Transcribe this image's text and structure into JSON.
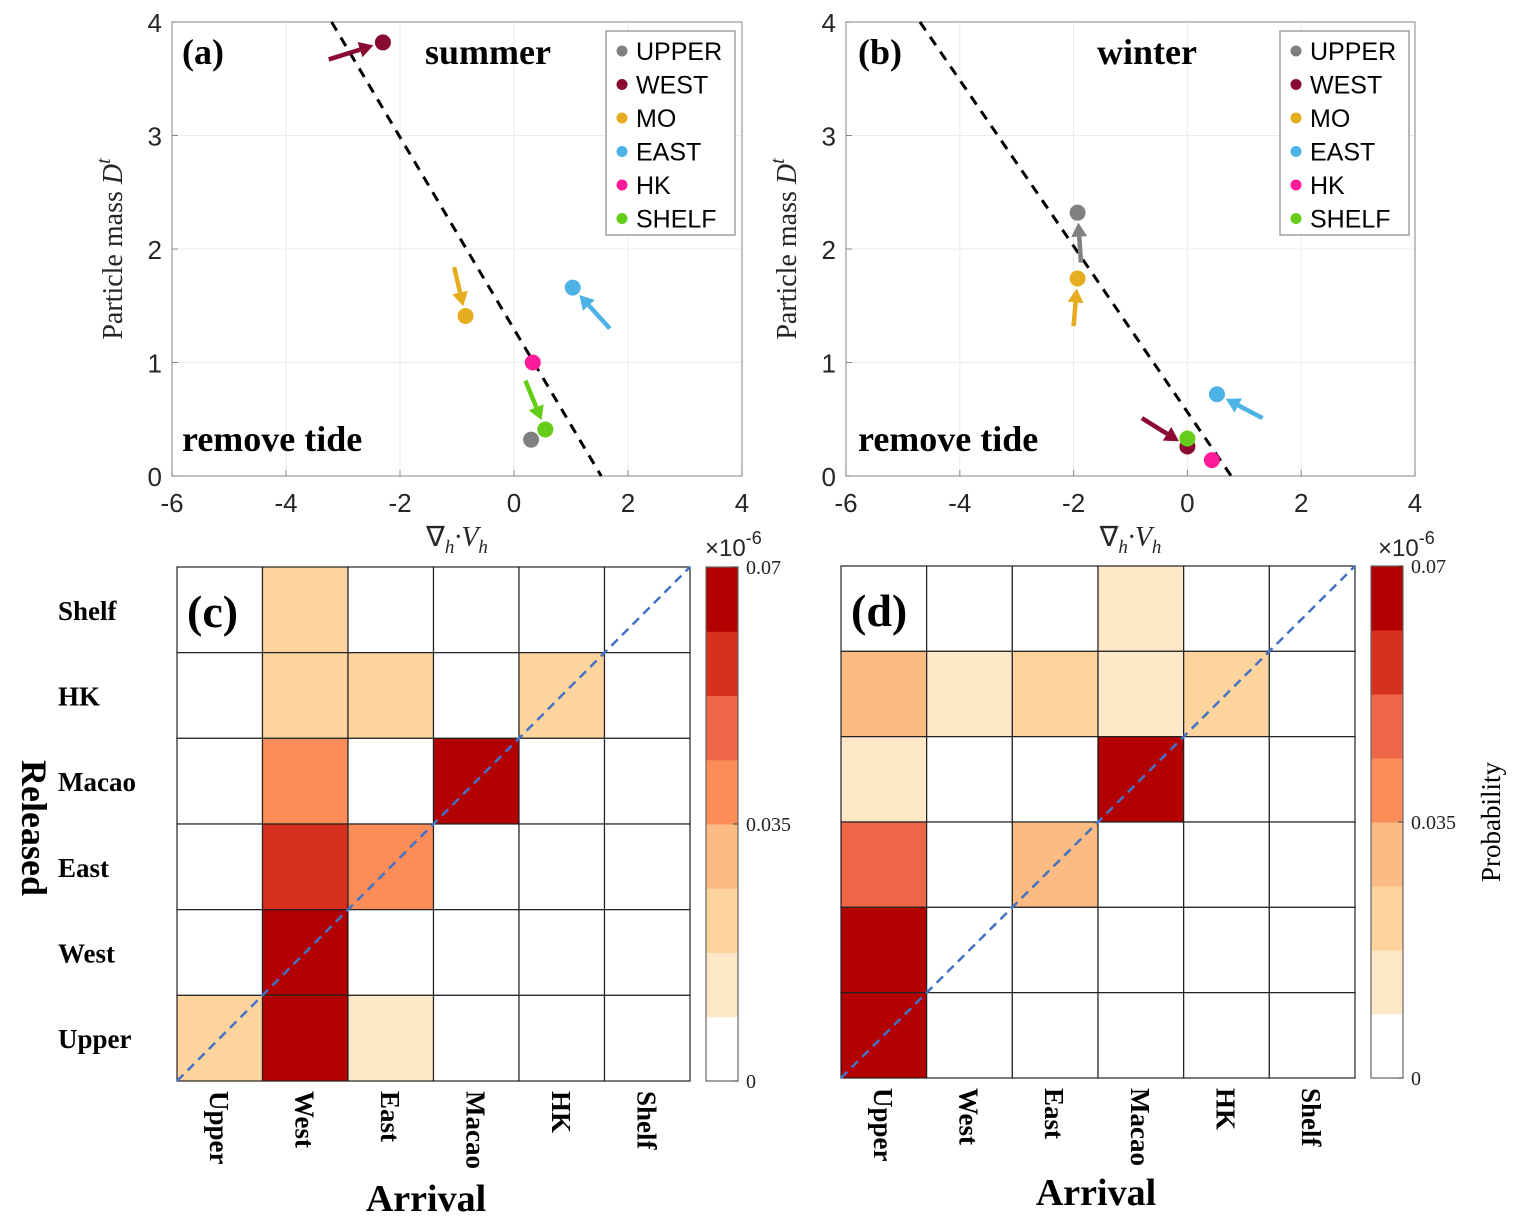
{
  "chart_data": [
    {
      "panel": "a",
      "type": "scatter",
      "panel_label": "(a)",
      "season_label": "summer",
      "condition_label": "remove tide",
      "xlabel": "∇h·Vh",
      "ylabel": "Particle mass D^t",
      "x_multiplier": "×10^-6",
      "xlim": [
        -6,
        4
      ],
      "ylim": [
        0,
        4
      ],
      "xticks": [
        -6,
        -4,
        -2,
        0,
        2,
        4
      ],
      "yticks": [
        0,
        1,
        2,
        3,
        4
      ],
      "grid": true,
      "legend_position": "top-right",
      "series": [
        {
          "name": "UPPER",
          "color": "#808080",
          "x": 0.3,
          "y": 0.32,
          "arrow": null
        },
        {
          "name": "WEST",
          "color": "#8b0a32",
          "x": -2.3,
          "y": 3.82,
          "arrow": {
            "from": [
              -3.25,
              3.67
            ]
          }
        },
        {
          "name": "MO",
          "color": "#e6ad21",
          "x": -0.85,
          "y": 1.41,
          "arrow": {
            "from": [
              -1.05,
              1.84
            ]
          }
        },
        {
          "name": "EAST",
          "color": "#4db3e6",
          "x": 1.03,
          "y": 1.66,
          "arrow": {
            "from": [
              1.68,
              1.3
            ]
          }
        },
        {
          "name": "HK",
          "color": "#ff1a99",
          "x": 0.33,
          "y": 1.0,
          "arrow": null
        },
        {
          "name": "SHELF",
          "color": "#66cc1a",
          "x": 0.55,
          "y": 0.41,
          "arrow": {
            "from": [
              0.2,
              0.84
            ]
          }
        }
      ],
      "fit_line": {
        "style": "dashed",
        "color": "#000000",
        "points": [
          [
            -3.2,
            4.0
          ],
          [
            1.53,
            0.0
          ]
        ]
      }
    },
    {
      "panel": "b",
      "type": "scatter",
      "panel_label": "(b)",
      "season_label": "winter",
      "condition_label": "remove tide",
      "xlabel": "∇h·Vh",
      "ylabel": "Particle mass D^t",
      "x_multiplier": "×10^-6",
      "xlim": [
        -6,
        4
      ],
      "ylim": [
        0,
        4
      ],
      "xticks": [
        -6,
        -4,
        -2,
        0,
        2,
        4
      ],
      "yticks": [
        0,
        1,
        2,
        3,
        4
      ],
      "grid": true,
      "legend_position": "top-right",
      "series": [
        {
          "name": "UPPER",
          "color": "#808080",
          "x": -1.93,
          "y": 2.32,
          "arrow": {
            "from": [
              -1.87,
              1.88
            ]
          }
        },
        {
          "name": "WEST",
          "color": "#8b0a32",
          "x": 0.0,
          "y": 0.26,
          "arrow": {
            "from": [
              -0.8,
              0.51
            ]
          }
        },
        {
          "name": "MO",
          "color": "#e6ad21",
          "x": -1.93,
          "y": 1.74,
          "arrow": {
            "from": [
              -2.0,
              1.32
            ]
          }
        },
        {
          "name": "EAST",
          "color": "#4db3e6",
          "x": 0.52,
          "y": 0.72,
          "arrow": {
            "from": [
              1.32,
              0.51
            ]
          }
        },
        {
          "name": "HK",
          "color": "#ff1a99",
          "x": 0.43,
          "y": 0.14,
          "arrow": null
        },
        {
          "name": "SHELF",
          "color": "#66cc1a",
          "x": 0.0,
          "y": 0.33,
          "arrow": null
        }
      ],
      "fit_line": {
        "style": "dashed",
        "color": "#000000",
        "points": [
          [
            -4.7,
            4.0
          ],
          [
            0.77,
            0.0
          ]
        ]
      }
    },
    {
      "panel": "c",
      "type": "heatmap",
      "panel_label": "(c)",
      "xlabel": "Arrival",
      "ylabel": "Released",
      "x_categories": [
        "Upper",
        "West",
        "East",
        "Macao",
        "HK",
        "Shelf"
      ],
      "y_categories_top_to_bottom": [
        "Shelf",
        "HK",
        "Macao",
        "East",
        "West",
        "Upper"
      ],
      "value_bin_note": "values are bin midpoints of 8 discrete colour levels",
      "values_top_to_bottom": [
        [
          0,
          0.022,
          0,
          0,
          0,
          0
        ],
        [
          0,
          0.022,
          0.022,
          0,
          0.022,
          0
        ],
        [
          0,
          0.039,
          0,
          0.07,
          0,
          0
        ],
        [
          0,
          0.057,
          0.039,
          0,
          0,
          0
        ],
        [
          0,
          0.07,
          0,
          0,
          0,
          0
        ],
        [
          0.022,
          0.07,
          0.013,
          0,
          0,
          0
        ]
      ],
      "diagonal": {
        "style": "dashed",
        "color": "#4472c4"
      },
      "colorbar": {
        "min": 0,
        "max": 0.07,
        "levels": 8,
        "ticks": [
          "0",
          "0.035",
          "0.07"
        ],
        "label": ""
      }
    },
    {
      "panel": "d",
      "type": "heatmap",
      "panel_label": "(d)",
      "xlabel": "Arrival",
      "ylabel": "",
      "x_categories": [
        "Upper",
        "West",
        "East",
        "Macao",
        "HK",
        "Shelf"
      ],
      "y_categories_top_to_bottom": [
        "Shelf",
        "HK",
        "Macao",
        "East",
        "West",
        "Upper"
      ],
      "values_top_to_bottom": [
        [
          0,
          0,
          0,
          0.013,
          0,
          0
        ],
        [
          0.031,
          0.013,
          0.022,
          0.013,
          0.022,
          0
        ],
        [
          0.013,
          0,
          0,
          0.07,
          0,
          0
        ],
        [
          0.048,
          0,
          0.031,
          0,
          0,
          0
        ],
        [
          0.07,
          0,
          0,
          0,
          0,
          0
        ],
        [
          0.07,
          0,
          0,
          0,
          0,
          0
        ]
      ],
      "diagonal": {
        "style": "dashed",
        "color": "#4472c4"
      },
      "colorbar": {
        "min": 0,
        "max": 0.07,
        "levels": 8,
        "ticks": [
          "0",
          "0.035",
          "0.07"
        ],
        "label": "Probability"
      }
    }
  ],
  "colormap": [
    "#ffffff",
    "#fee8c8",
    "#fdd49e",
    "#fdbb84",
    "#fc8d59",
    "#ef6548",
    "#d7301f",
    "#b30000"
  ],
  "labels": {
    "released": "Released",
    "arrival": "Arrival",
    "probability": "Probability",
    "ylabel_main": "Particle mass ",
    "ylabel_D": "D",
    "ylabel_sup": "t",
    "times": "×10",
    "exp": "-6"
  }
}
